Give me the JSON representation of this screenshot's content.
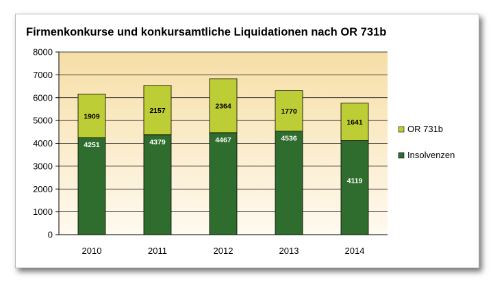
{
  "chart_data": {
    "type": "bar",
    "stacked": true,
    "title": "Firmenkonkurse und konkursamtliche Liquidationen nach OR 731b",
    "categories": [
      "2010",
      "2011",
      "2012",
      "2013",
      "2014"
    ],
    "series": [
      {
        "name": "Insolvenzen",
        "values": [
          4251,
          4379,
          4467,
          4536,
          4119
        ],
        "color": "#2f6d2e"
      },
      {
        "name": "OR 731b",
        "values": [
          1909,
          2157,
          2364,
          1770,
          1641
        ],
        "color": "#bccd35"
      }
    ],
    "ylim": [
      0,
      8000
    ],
    "yticks": [
      0,
      1000,
      2000,
      3000,
      4000,
      5000,
      6000,
      7000,
      8000
    ],
    "grid": true,
    "legend_position": "right",
    "plot_background": {
      "top": "#f6dea6",
      "bottom": "#fffaf0"
    }
  }
}
